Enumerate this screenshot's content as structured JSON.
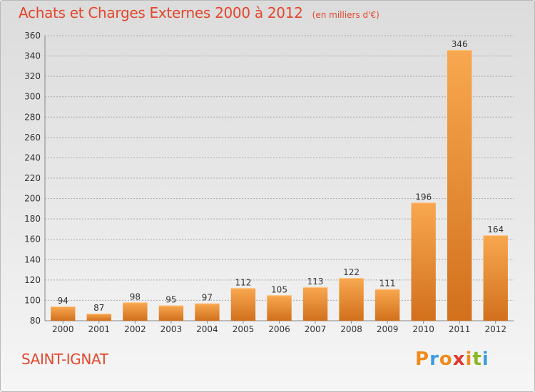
{
  "header": {
    "title": "Achats et Charges Externes 2000 à 2012",
    "unit": "(en milliers d'€)"
  },
  "footer": {
    "place": "SAINT-IGNAT",
    "brand": "Proxiti",
    "brand_colors": [
      "#f08a1c",
      "#3d9be0",
      "#f08a1c",
      "#e0362c",
      "#f08a1c",
      "#88b820",
      "#3d9be0"
    ]
  },
  "colors": {
    "bar_light": "#f8a850",
    "bar_dark": "#d2701c",
    "grid": "#a8a8a8",
    "axis": "#888888",
    "title": "#e2472d"
  },
  "chart_data": {
    "type": "bar",
    "title": "Achats et Charges Externes 2000 à 2012",
    "subtitle": "(en milliers d'€)",
    "categories": [
      "2000",
      "2001",
      "2002",
      "2003",
      "2004",
      "2005",
      "2006",
      "2007",
      "2008",
      "2009",
      "2010",
      "2011",
      "2012"
    ],
    "values": [
      94,
      87,
      98,
      95,
      97,
      112,
      105,
      113,
      122,
      111,
      196,
      346,
      164
    ],
    "ylim": [
      80,
      360
    ],
    "yticks": [
      80,
      100,
      120,
      140,
      160,
      180,
      200,
      220,
      240,
      260,
      280,
      300,
      320,
      340,
      360
    ],
    "grid": true,
    "data_labels": true
  }
}
